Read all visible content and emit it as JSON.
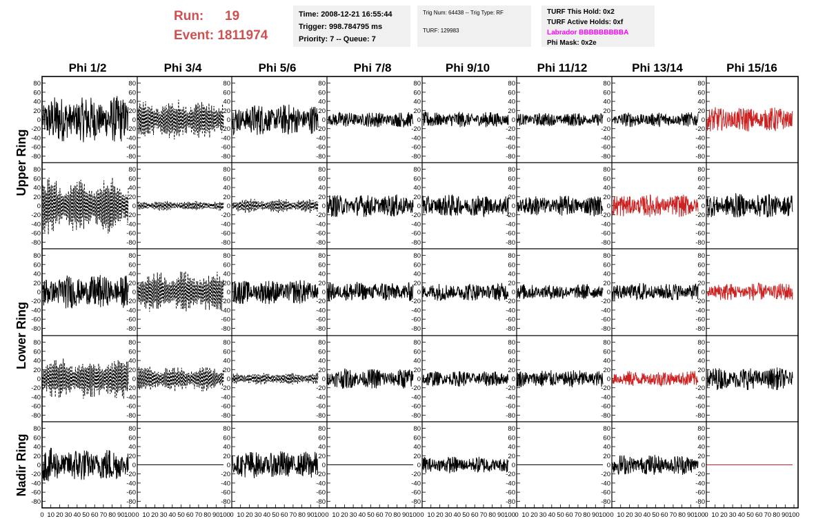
{
  "header": {
    "run_label": "Run:",
    "run_value": "19",
    "event_label": "Event:",
    "event_value": "1811974",
    "time_text": "Time: 2008-12-21 16:55:44",
    "trigger_text": "Trigger: 998.784795 ms",
    "priority_text": "Priority: 7 -- Queue: 7",
    "trig_num_text": "Trig Num: 64438 -- Trig Type: RF",
    "turf_text": "TURF: 129983",
    "turf_hold_text": "TURF This Hold: 0x2",
    "turf_active_text": "TURF Active Holds: 0xf",
    "labrador_text": "Labrador BBBBBBBBBA",
    "phi_mask_text": "Phi Mask: 0x2e",
    "colors": {
      "run": "#d05050",
      "labrador": "#ff00ff",
      "masked_trace": "#cc2222",
      "trace": "#000000"
    }
  },
  "chart_data": {
    "type": "line",
    "columns": [
      "Phi 1/2",
      "Phi 3/4",
      "Phi 5/6",
      "Phi 7/8",
      "Phi 9/10",
      "Phi 11/12",
      "Phi 13/14",
      "Phi 15/16"
    ],
    "row_groups": [
      "Upper Ring",
      "Lower Ring",
      "Nadir Ring"
    ],
    "ylim": [
      -90,
      90
    ],
    "y_ticks": [
      -80,
      -60,
      -40,
      -20,
      0,
      20,
      40,
      60,
      80
    ],
    "xlim": [
      0,
      100
    ],
    "x_ticks": [
      0,
      10,
      20,
      30,
      40,
      50,
      60,
      70,
      80,
      90,
      100
    ],
    "panel_rows": [
      [
        {
          "amp": 42,
          "style": "solid",
          "color": "black"
        },
        {
          "amp": 40,
          "style": "dashed",
          "color": "black"
        },
        {
          "amp": 28,
          "style": "solid",
          "color": "black"
        },
        {
          "amp": 14,
          "style": "solid",
          "color": "black"
        },
        {
          "amp": 14,
          "style": "solid",
          "color": "black"
        },
        {
          "amp": 12,
          "style": "solid",
          "color": "black"
        },
        {
          "amp": 13,
          "style": "solid",
          "color": "black"
        },
        {
          "amp": 22,
          "style": "solid",
          "color": "red"
        }
      ],
      [
        {
          "amp": 55,
          "style": "dashed",
          "color": "black"
        },
        {
          "amp": 10,
          "style": "dashed",
          "color": "black"
        },
        {
          "amp": 14,
          "style": "dashed",
          "color": "black"
        },
        {
          "amp": 20,
          "style": "solid",
          "color": "black"
        },
        {
          "amp": 20,
          "style": "solid",
          "color": "black"
        },
        {
          "amp": 18,
          "style": "solid",
          "color": "black"
        },
        {
          "amp": 20,
          "style": "solid",
          "color": "red"
        },
        {
          "amp": 22,
          "style": "solid",
          "color": "black"
        }
      ],
      [
        {
          "amp": 30,
          "style": "solid",
          "color": "black"
        },
        {
          "amp": 40,
          "style": "dashed",
          "color": "black"
        },
        {
          "amp": 22,
          "style": "solid",
          "color": "black"
        },
        {
          "amp": 18,
          "style": "solid",
          "color": "black"
        },
        {
          "amp": 16,
          "style": "solid",
          "color": "black"
        },
        {
          "amp": 14,
          "style": "solid",
          "color": "black"
        },
        {
          "amp": 16,
          "style": "solid",
          "color": "black"
        },
        {
          "amp": 16,
          "style": "solid",
          "color": "red"
        }
      ],
      [
        {
          "amp": 40,
          "style": "dashed",
          "color": "black"
        },
        {
          "amp": 25,
          "style": "dashed",
          "color": "black"
        },
        {
          "amp": 12,
          "style": "dashed",
          "color": "black"
        },
        {
          "amp": 18,
          "style": "solid",
          "color": "black"
        },
        {
          "amp": 14,
          "style": "solid",
          "color": "black"
        },
        {
          "amp": 16,
          "style": "solid",
          "color": "black"
        },
        {
          "amp": 14,
          "style": "solid",
          "color": "red"
        },
        {
          "amp": 20,
          "style": "solid",
          "color": "black"
        }
      ],
      [
        {
          "amp": 30,
          "style": "solid",
          "color": "black"
        },
        {
          "amp": 0,
          "style": "solid",
          "color": "black"
        },
        {
          "amp": 25,
          "style": "solid",
          "color": "black"
        },
        {
          "amp": 0,
          "style": "solid",
          "color": "black"
        },
        {
          "amp": 15,
          "style": "solid",
          "color": "black"
        },
        {
          "amp": 0,
          "style": "solid",
          "color": "black"
        },
        {
          "amp": 18,
          "style": "solid",
          "color": "black"
        },
        {
          "amp": 0,
          "style": "solid",
          "color": "red"
        }
      ]
    ]
  }
}
